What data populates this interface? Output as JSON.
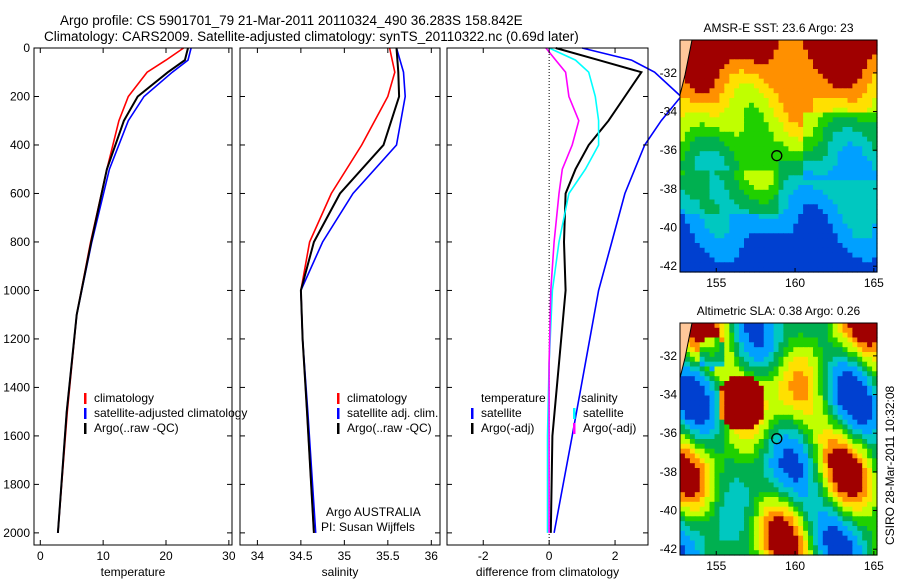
{
  "title_line1": "Argo profile: CS 5901701_79 21-Mar-2011 20110324_490 36.283S 158.842E",
  "title_line2": "Climatology: CARS2009. Satellite-adjusted climatology: synTS_20110322.nc (0.69d later)",
  "credit": "CSIRO 28-Mar-2011 10:32:08",
  "colors": {
    "climatology": "#ff0000",
    "satellite": "#0000ff",
    "argo": "#000000",
    "sal_satellite": "#00ffff",
    "sal_argo": "#ff00ff"
  },
  "chart_data": [
    {
      "type": "line",
      "xlabel": "temperature",
      "ylabel": "",
      "xlim": [
        -1,
        30.5
      ],
      "ylim": [
        2050,
        0
      ],
      "xticks": [
        "0",
        "10",
        "20",
        "30"
      ],
      "yticks": [
        "0",
        "200",
        "400",
        "600",
        "800",
        "1000",
        "1200",
        "1400",
        "1600",
        "1800",
        "2000"
      ],
      "legend": [
        "climatology",
        "satellite-adjusted climatology",
        "Argo(..raw -QC)"
      ],
      "depth": [
        0,
        50,
        100,
        200,
        300,
        500,
        800,
        1100,
        1500,
        2000
      ],
      "series": [
        {
          "name": "climatology",
          "color": "#ff0000",
          "values": [
            22.8,
            20,
            17,
            14,
            12.5,
            10.6,
            8,
            5.8,
            4.3,
            2.8
          ]
        },
        {
          "name": "satellite-adjusted climatology",
          "color": "#0000ff",
          "values": [
            24,
            23.5,
            21,
            16.5,
            14,
            11,
            8.2,
            5.8,
            4.2,
            2.8
          ]
        },
        {
          "name": "Argo(..raw -QC)",
          "color": "#000000",
          "values": [
            23.5,
            23,
            20.3,
            15.5,
            13.3,
            10.6,
            8.1,
            5.8,
            4.2,
            2.8
          ]
        }
      ]
    },
    {
      "type": "line",
      "xlabel": "salinity",
      "xlim": [
        33.8,
        36.1
      ],
      "ylim": [
        2050,
        0
      ],
      "xticks": [
        "34",
        "34.5",
        "35",
        "35.5",
        "36"
      ],
      "legend": [
        "climatology",
        "satellite adj. clim.",
        "Argo(..raw -QC)"
      ],
      "annotation": [
        "Argo AUSTRALIA",
        "PI: Susan Wijffels"
      ],
      "depth": [
        0,
        100,
        200,
        400,
        600,
        800,
        1000,
        1200,
        1500,
        2000
      ],
      "series": [
        {
          "name": "climatology",
          "color": "#ff0000",
          "values": [
            35.52,
            35.58,
            35.5,
            35.2,
            34.85,
            34.6,
            34.5,
            34.52,
            34.57,
            34.65
          ]
        },
        {
          "name": "satellite adj. clim.",
          "color": "#0000ff",
          "values": [
            35.6,
            35.68,
            35.7,
            35.6,
            35.1,
            34.75,
            34.5,
            34.52,
            34.58,
            34.67
          ]
        },
        {
          "name": "Argo(..raw -QC)",
          "color": "#000000",
          "values": [
            35.6,
            35.62,
            35.63,
            35.45,
            34.95,
            34.65,
            34.5,
            34.52,
            34.57,
            34.65
          ]
        }
      ]
    },
    {
      "type": "line",
      "xlabel": "difference from climatology",
      "xlim": [
        -3.1,
        3
      ],
      "ylim": [
        2050,
        0
      ],
      "xticks": [
        "-2",
        "0",
        "2"
      ],
      "legend_titles": [
        "temperature",
        "salinity"
      ],
      "legend": [
        "satellite",
        "Argo(-adj)",
        "satellite",
        "Argo(-adj)"
      ],
      "depth": [
        0,
        50,
        100,
        200,
        300,
        400,
        500,
        600,
        800,
        1000,
        1300,
        1600,
        2000
      ],
      "series": [
        {
          "name": "temperature satellite",
          "color": "#0000ff",
          "values": [
            1,
            2.5,
            3.2,
            4,
            3.4,
            2.9,
            2.6,
            2.3,
            1.9,
            1.5,
            1.1,
            0.7,
            0.15
          ]
        },
        {
          "name": "temperature Argo(-adj)",
          "color": "#000000",
          "values": [
            0.2,
            1.5,
            2.8,
            2.3,
            1.8,
            1.2,
            0.8,
            0.5,
            0.45,
            0.5,
            0.3,
            0.1,
            0.05
          ]
        },
        {
          "name": "salinity satellite",
          "color": "#00ffff",
          "values": [
            0,
            0.8,
            1.2,
            1.4,
            1.5,
            1.5,
            1.1,
            0.6,
            0.3,
            0.1,
            0,
            -0.05,
            -0.05
          ]
        },
        {
          "name": "salinity Argo(-adj)",
          "color": "#ff00ff",
          "values": [
            -0.1,
            0.2,
            0.5,
            0.6,
            0.9,
            0.7,
            0.4,
            0.3,
            0.15,
            0.05,
            0,
            0,
            0
          ]
        }
      ]
    },
    {
      "type": "heatmap",
      "title": "AMSR-E SST: 23.6 Argo: 23",
      "xticks": [
        "155",
        "160",
        "165"
      ],
      "yticks": [
        "-32",
        "-34",
        "-36",
        "-38",
        "-40",
        "-42"
      ],
      "marker": {
        "lon": 158.842,
        "lat": -36.283
      }
    },
    {
      "type": "heatmap",
      "title": "Altimetric SLA: 0.38 Argo: 0.26",
      "xticks": [
        "155",
        "160",
        "165"
      ],
      "yticks": [
        "-32",
        "-34",
        "-36",
        "-38",
        "-40",
        "-42"
      ],
      "marker": {
        "lon": 158.842,
        "lat": -36.283
      }
    }
  ]
}
